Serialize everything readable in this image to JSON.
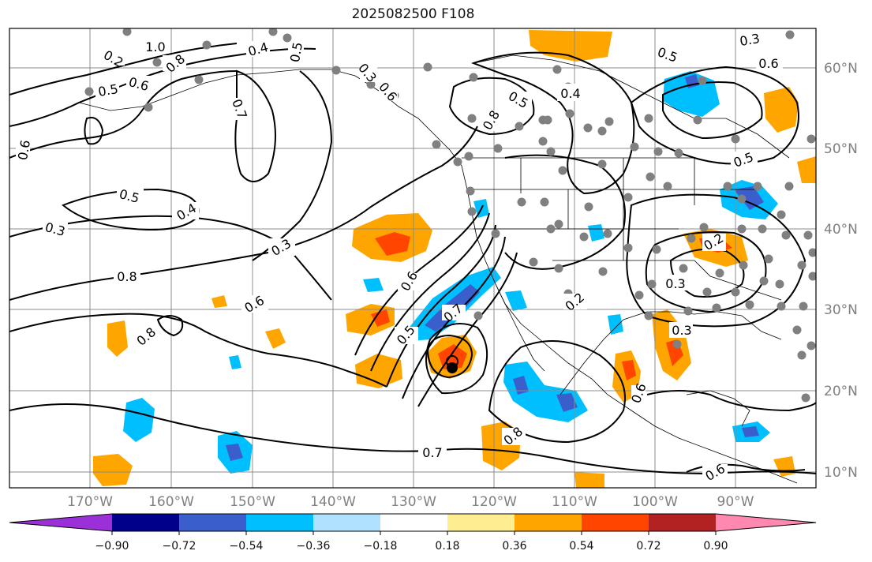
{
  "title": "2025082500 F108",
  "lon_labels": [
    "170°W",
    "160°W",
    "150°W",
    "140°W",
    "130°W",
    "120°W",
    "110°W",
    "100°W",
    "90°W"
  ],
  "lat_labels": [
    "60°N",
    "50°N",
    "40°N",
    "30°N",
    "20°N",
    "10°N"
  ],
  "contour_labels": [
    "1.0",
    "0.8",
    "0.2",
    "0.6",
    "0.5",
    "0.4",
    "0.5",
    "0.7",
    "0.6",
    "0.5",
    "0.4",
    "0.3",
    "0.3",
    "0.8",
    "0.6",
    "0.8",
    "0.5",
    "0.7",
    "0.6",
    "0.8",
    "0.5",
    "0.4",
    "0.5",
    "0.6",
    "0.5",
    "0.3",
    "0.3",
    "0.2",
    "0.3",
    "0.2",
    "0.8",
    "0.7",
    "0.6",
    "0.6",
    "0.6",
    "0.3"
  ],
  "colorbar": {
    "ticks": [
      "−0.90",
      "−0.72",
      "−0.54",
      "−0.36",
      "−0.18",
      "0.18",
      "0.36",
      "0.54",
      "0.72",
      "0.90"
    ],
    "colors": [
      "#9b30d9",
      "#00008b",
      "#3a5fcd",
      "#00bfff",
      "#b0e2ff",
      "#ffffff",
      "#ffee90",
      "#ffa500",
      "#ff4500",
      "#b22222",
      "#ff88b0"
    ]
  }
}
